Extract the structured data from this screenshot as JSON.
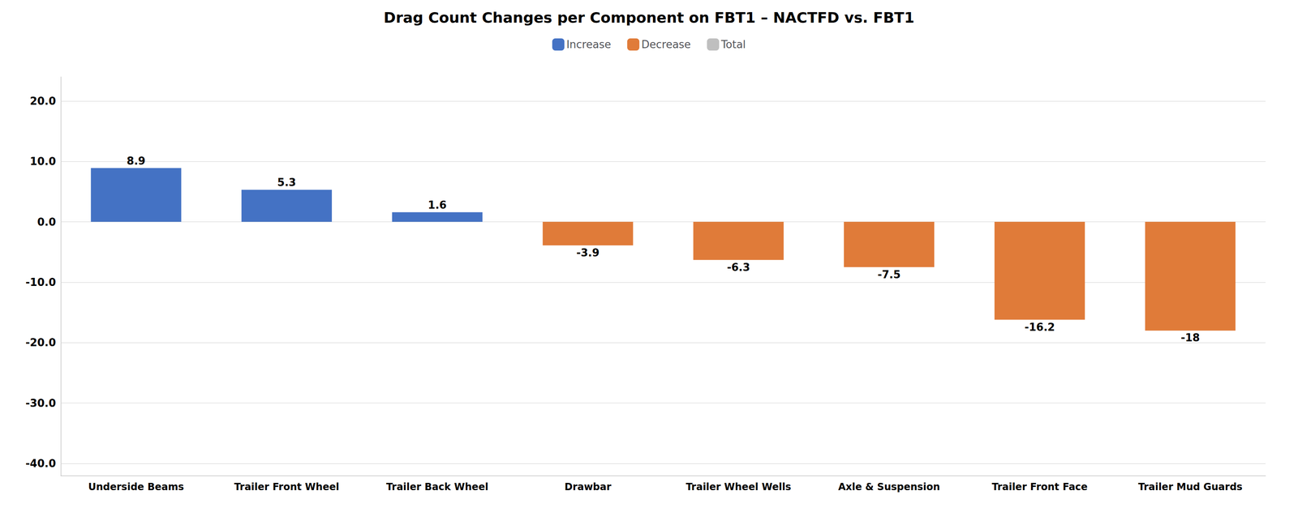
{
  "chart_data": {
    "type": "bar",
    "title": "Drag Count Changes per Component on FBT1 – NACTFD vs. FBT1",
    "categories": [
      "Underside Beams",
      "Trailer Front Wheel",
      "Trailer Back Wheel",
      "Drawbar",
      "Trailer Wheel Wells",
      "Axle & Suspension",
      "Trailer Front Face",
      "Trailer Mud Guards"
    ],
    "series": [
      {
        "name": "Increase",
        "color": "#4472C4",
        "values": [
          8.9,
          5.3,
          1.6,
          null,
          null,
          null,
          null,
          null
        ]
      },
      {
        "name": "Decrease",
        "color": "#E07B39",
        "values": [
          null,
          null,
          null,
          -3.9,
          -6.3,
          -7.5,
          -16.2,
          -18.0
        ]
      },
      {
        "name": "Total",
        "color": "#BFBFBF",
        "values": [
          null,
          null,
          null,
          null,
          null,
          null,
          null,
          null
        ]
      }
    ],
    "ylim": [
      -42.0,
      24.0
    ],
    "yticks": [
      {
        "value": -40,
        "label": "-40.0"
      },
      {
        "value": -30,
        "label": "-30.0"
      },
      {
        "value": -20,
        "label": "-20.0"
      },
      {
        "value": -10,
        "label": "-10.0"
      },
      {
        "value": 0,
        "label": "0.0"
      },
      {
        "value": 10,
        "label": "10.0"
      },
      {
        "value": 20,
        "label": "20.0"
      }
    ],
    "grid": true,
    "legend": "top",
    "data_labels": true
  }
}
